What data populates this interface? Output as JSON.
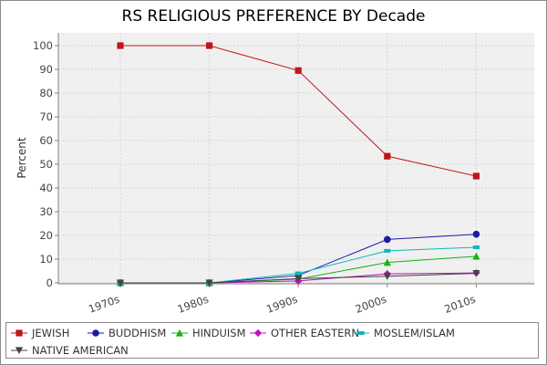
{
  "chart_data": {
    "type": "line",
    "title": "RS RELIGIOUS PREFERENCE BY Decade",
    "xlabel": "",
    "ylabel": "Percent",
    "categories": [
      "1970s",
      "1980s",
      "1990s",
      "2000s",
      "2010s"
    ],
    "ylim": [
      0,
      105
    ],
    "yticks": [
      0,
      10,
      20,
      30,
      40,
      50,
      60,
      70,
      80,
      90,
      100
    ],
    "grid": true,
    "legend": "bottom",
    "series": [
      {
        "name": "JEWISH",
        "color": "#c0141b",
        "marker": "square",
        "values": [
          100,
          100,
          89.5,
          53.4,
          45.0
        ]
      },
      {
        "name": "BUDDHISM",
        "color": "#1a1aa6",
        "marker": "circle",
        "values": [
          0,
          0,
          3.1,
          18.3,
          20.5
        ]
      },
      {
        "name": "HINDUISM",
        "color": "#12b312",
        "marker": "triangle-up",
        "values": [
          0,
          0,
          1.6,
          8.6,
          11.2
        ]
      },
      {
        "name": "OTHER EASTERN",
        "color": "#c010c0",
        "marker": "diamond",
        "values": [
          0,
          0,
          0.8,
          3.8,
          4.2
        ]
      },
      {
        "name": "MOSLEM/ISLAM",
        "color": "#10b8b8",
        "marker": "rect-h",
        "values": [
          0,
          0,
          4.0,
          13.5,
          15.0
        ]
      },
      {
        "name": "NATIVE AMERICAN",
        "color": "#444444",
        "marker": "triangle-down",
        "values": [
          0,
          0,
          1.8,
          2.8,
          4.0
        ]
      }
    ]
  }
}
